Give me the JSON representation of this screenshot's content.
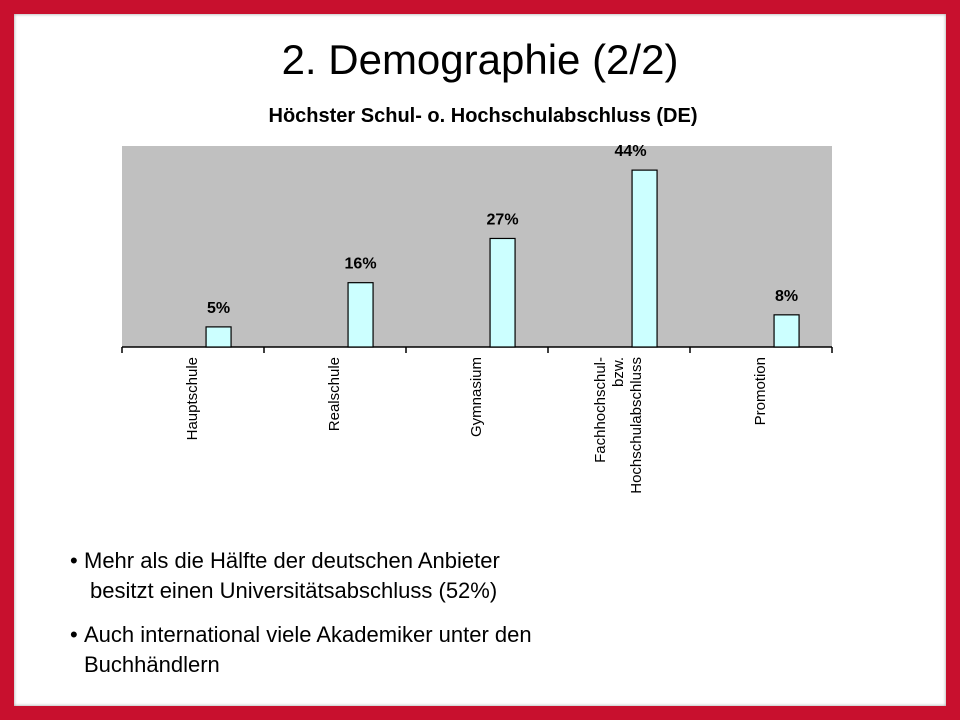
{
  "slide": {
    "title": "2. Demographie (2/2)",
    "bullets": [
      {
        "lines": [
          "Mehr als die Hälfte der deutschen Anbieter",
          "besitzt einen Universitätsabschluss (52%)"
        ]
      },
      {
        "lines": [
          "Auch international viele Akademiker unter den",
          "Buchhändlern"
        ]
      }
    ]
  },
  "chart_data": {
    "type": "bar",
    "title": "Höchster Schul- o. Hochschulabschluss  (DE)",
    "categories": [
      [
        "Hauptschule"
      ],
      [
        "Realschule"
      ],
      [
        "Gymnasium"
      ],
      [
        "Fachhochschul-",
        "bzw.",
        "Hochschulabschluss"
      ],
      [
        "Promotion"
      ]
    ],
    "values": [
      5,
      16,
      27,
      44,
      8
    ],
    "data_labels": [
      "5%",
      "16%",
      "27%",
      "44%",
      "8%"
    ],
    "ylim": [
      0,
      50
    ],
    "xlabel": "",
    "ylabel": "",
    "grid": false,
    "legend": "none",
    "colors": {
      "plot_area": "#c0c0c0",
      "bar_fill": "#ccffff",
      "bar_stroke": "#000000",
      "frame_background": "#c8102e"
    }
  }
}
